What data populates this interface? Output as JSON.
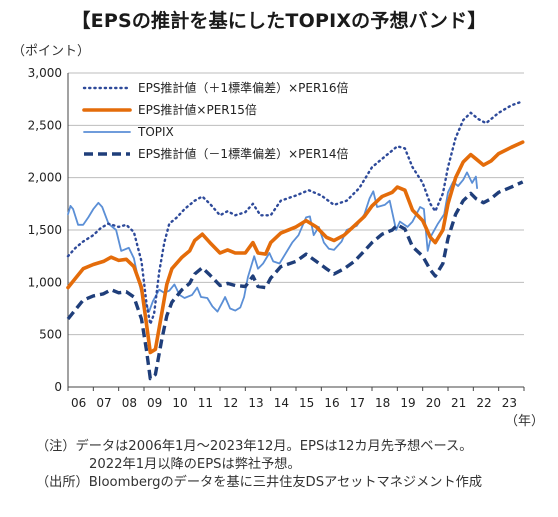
{
  "title": "【EPSの推計を基にしたTOPIXの予想バンド】",
  "y_unit": "（ポイント）",
  "x_unit": "（年）",
  "notes": {
    "line1": "（注）データは2006年1月～2023年12月。EPSは12カ月先予想ベース。",
    "line2": "2022年1月以降のEPSは弊社予想。",
    "line3": "（出所）Bloombergのデータを基に三井住友DSアセットマネジメント作成"
  },
  "chart_data": {
    "type": "line",
    "x_tick_labels": [
      "06",
      "07",
      "08",
      "09",
      "10",
      "11",
      "12",
      "13",
      "14",
      "15",
      "16",
      "17",
      "18",
      "19",
      "20",
      "21",
      "22",
      "23"
    ],
    "x_range": [
      2006.0,
      2024.0
    ],
    "ylim": [
      0,
      3000
    ],
    "y_ticks": [
      0,
      500,
      1000,
      1500,
      2000,
      2500,
      3000
    ],
    "y_tick_labels": [
      "0",
      "500",
      "1,000",
      "1,500",
      "2,000",
      "2,500",
      "3,000"
    ],
    "grid": "horizontal",
    "legend_position": "top-left",
    "series": [
      {
        "name": "EPS推計値（＋1標準偏差）×PER16倍",
        "color": "#2e4a9a",
        "style": "dotted",
        "points": [
          [
            2006.0,
            1250
          ],
          [
            2006.3,
            1330
          ],
          [
            2006.6,
            1390
          ],
          [
            2007.0,
            1450
          ],
          [
            2007.3,
            1520
          ],
          [
            2007.6,
            1560
          ],
          [
            2008.0,
            1530
          ],
          [
            2008.3,
            1550
          ],
          [
            2008.6,
            1480
          ],
          [
            2008.9,
            1200
          ],
          [
            2009.1,
            800
          ],
          [
            2009.25,
            600
          ],
          [
            2009.4,
            700
          ],
          [
            2009.6,
            1100
          ],
          [
            2009.8,
            1380
          ],
          [
            2010.0,
            1560
          ],
          [
            2010.3,
            1620
          ],
          [
            2010.6,
            1700
          ],
          [
            2011.0,
            1780
          ],
          [
            2011.3,
            1820
          ],
          [
            2011.6,
            1750
          ],
          [
            2012.0,
            1640
          ],
          [
            2012.3,
            1680
          ],
          [
            2012.6,
            1640
          ],
          [
            2013.0,
            1670
          ],
          [
            2013.3,
            1750
          ],
          [
            2013.6,
            1640
          ],
          [
            2014.0,
            1640
          ],
          [
            2014.4,
            1780
          ],
          [
            2015.0,
            1830
          ],
          [
            2015.5,
            1880
          ],
          [
            2016.0,
            1830
          ],
          [
            2016.5,
            1740
          ],
          [
            2017.0,
            1780
          ],
          [
            2017.5,
            1900
          ],
          [
            2018.0,
            2100
          ],
          [
            2018.5,
            2200
          ],
          [
            2019.0,
            2300
          ],
          [
            2019.3,
            2280
          ],
          [
            2019.6,
            2100
          ],
          [
            2020.0,
            1950
          ],
          [
            2020.3,
            1750
          ],
          [
            2020.5,
            1680
          ],
          [
            2020.8,
            1850
          ],
          [
            2021.0,
            2100
          ],
          [
            2021.3,
            2380
          ],
          [
            2021.6,
            2550
          ],
          [
            2021.9,
            2620
          ],
          [
            2022.2,
            2560
          ],
          [
            2022.5,
            2520
          ],
          [
            2022.8,
            2580
          ],
          [
            2023.0,
            2620
          ],
          [
            2023.5,
            2690
          ],
          [
            2023.95,
            2730
          ]
        ]
      },
      {
        "name": "EPS推計値×PER15倍",
        "color": "#e46c0a",
        "style": "solid-thick",
        "points": [
          [
            2006.0,
            950
          ],
          [
            2006.3,
            1040
          ],
          [
            2006.6,
            1130
          ],
          [
            2007.0,
            1170
          ],
          [
            2007.4,
            1200
          ],
          [
            2007.7,
            1240
          ],
          [
            2008.0,
            1210
          ],
          [
            2008.3,
            1220
          ],
          [
            2008.6,
            1150
          ],
          [
            2008.9,
            950
          ],
          [
            2009.1,
            600
          ],
          [
            2009.25,
            330
          ],
          [
            2009.45,
            360
          ],
          [
            2009.7,
            700
          ],
          [
            2009.9,
            980
          ],
          [
            2010.1,
            1130
          ],
          [
            2010.5,
            1240
          ],
          [
            2010.8,
            1300
          ],
          [
            2011.0,
            1400
          ],
          [
            2011.3,
            1460
          ],
          [
            2011.6,
            1380
          ],
          [
            2012.0,
            1280
          ],
          [
            2012.3,
            1310
          ],
          [
            2012.6,
            1280
          ],
          [
            2013.0,
            1280
          ],
          [
            2013.3,
            1380
          ],
          [
            2013.5,
            1280
          ],
          [
            2013.8,
            1270
          ],
          [
            2014.0,
            1380
          ],
          [
            2014.4,
            1470
          ],
          [
            2015.0,
            1530
          ],
          [
            2015.4,
            1590
          ],
          [
            2015.8,
            1530
          ],
          [
            2016.2,
            1430
          ],
          [
            2016.5,
            1400
          ],
          [
            2016.9,
            1450
          ],
          [
            2017.3,
            1540
          ],
          [
            2017.7,
            1630
          ],
          [
            2018.0,
            1730
          ],
          [
            2018.4,
            1820
          ],
          [
            2018.8,
            1860
          ],
          [
            2019.0,
            1910
          ],
          [
            2019.3,
            1880
          ],
          [
            2019.6,
            1690
          ],
          [
            2020.0,
            1590
          ],
          [
            2020.3,
            1430
          ],
          [
            2020.5,
            1380
          ],
          [
            2020.8,
            1500
          ],
          [
            2021.0,
            1750
          ],
          [
            2021.3,
            2000
          ],
          [
            2021.6,
            2150
          ],
          [
            2021.9,
            2220
          ],
          [
            2022.1,
            2180
          ],
          [
            2022.4,
            2120
          ],
          [
            2022.7,
            2160
          ],
          [
            2023.0,
            2230
          ],
          [
            2023.5,
            2290
          ],
          [
            2023.95,
            2340
          ]
        ]
      },
      {
        "name": "TOPIX",
        "color": "#5b8fd6",
        "style": "solid-thin",
        "points": [
          [
            2006.0,
            1650
          ],
          [
            2006.1,
            1730
          ],
          [
            2006.2,
            1700
          ],
          [
            2006.4,
            1550
          ],
          [
            2006.6,
            1550
          ],
          [
            2006.8,
            1620
          ],
          [
            2007.0,
            1700
          ],
          [
            2007.2,
            1760
          ],
          [
            2007.35,
            1720
          ],
          [
            2007.6,
            1560
          ],
          [
            2007.9,
            1500
          ],
          [
            2008.1,
            1300
          ],
          [
            2008.4,
            1330
          ],
          [
            2008.6,
            1230
          ],
          [
            2008.8,
            1000
          ],
          [
            2008.95,
            850
          ],
          [
            2009.1,
            780
          ],
          [
            2009.2,
            720
          ],
          [
            2009.35,
            820
          ],
          [
            2009.6,
            930
          ],
          [
            2009.8,
            900
          ],
          [
            2010.0,
            920
          ],
          [
            2010.2,
            980
          ],
          [
            2010.4,
            880
          ],
          [
            2010.6,
            850
          ],
          [
            2010.9,
            880
          ],
          [
            2011.1,
            950
          ],
          [
            2011.25,
            860
          ],
          [
            2011.5,
            850
          ],
          [
            2011.7,
            770
          ],
          [
            2011.9,
            720
          ],
          [
            2012.1,
            810
          ],
          [
            2012.2,
            860
          ],
          [
            2012.4,
            750
          ],
          [
            2012.6,
            730
          ],
          [
            2012.8,
            760
          ],
          [
            2012.95,
            860
          ],
          [
            2013.1,
            1050
          ],
          [
            2013.35,
            1250
          ],
          [
            2013.5,
            1130
          ],
          [
            2013.7,
            1180
          ],
          [
            2013.95,
            1280
          ],
          [
            2014.1,
            1200
          ],
          [
            2014.35,
            1180
          ],
          [
            2014.6,
            1280
          ],
          [
            2014.85,
            1380
          ],
          [
            2015.1,
            1450
          ],
          [
            2015.4,
            1620
          ],
          [
            2015.55,
            1630
          ],
          [
            2015.7,
            1450
          ],
          [
            2015.9,
            1530
          ],
          [
            2016.1,
            1380
          ],
          [
            2016.3,
            1320
          ],
          [
            2016.5,
            1310
          ],
          [
            2016.8,
            1390
          ],
          [
            2017.0,
            1500
          ],
          [
            2017.4,
            1540
          ],
          [
            2017.7,
            1650
          ],
          [
            2017.9,
            1800
          ],
          [
            2018.05,
            1870
          ],
          [
            2018.2,
            1720
          ],
          [
            2018.5,
            1740
          ],
          [
            2018.7,
            1780
          ],
          [
            2018.95,
            1500
          ],
          [
            2019.1,
            1580
          ],
          [
            2019.4,
            1530
          ],
          [
            2019.6,
            1580
          ],
          [
            2019.9,
            1720
          ],
          [
            2020.05,
            1700
          ],
          [
            2020.2,
            1300
          ],
          [
            2020.35,
            1450
          ],
          [
            2020.6,
            1560
          ],
          [
            2020.85,
            1650
          ],
          [
            2021.0,
            1860
          ],
          [
            2021.2,
            1960
          ],
          [
            2021.4,
            1920
          ],
          [
            2021.6,
            1980
          ],
          [
            2021.75,
            2050
          ],
          [
            2021.95,
            1950
          ],
          [
            2022.1,
            2010
          ],
          [
            2022.15,
            1900
          ]
        ]
      },
      {
        "name": "EPS推計値（－1標準偏差）×PER14倍",
        "color": "#1f3e7a",
        "style": "dashed-thick",
        "points": [
          [
            2006.0,
            650
          ],
          [
            2006.3,
            740
          ],
          [
            2006.6,
            830
          ],
          [
            2007.0,
            870
          ],
          [
            2007.4,
            890
          ],
          [
            2007.7,
            930
          ],
          [
            2008.0,
            900
          ],
          [
            2008.3,
            910
          ],
          [
            2008.6,
            860
          ],
          [
            2008.9,
            650
          ],
          [
            2009.1,
            350
          ],
          [
            2009.25,
            80
          ],
          [
            2009.45,
            120
          ],
          [
            2009.7,
            450
          ],
          [
            2009.9,
            680
          ],
          [
            2010.1,
            810
          ],
          [
            2010.5,
            930
          ],
          [
            2010.8,
            990
          ],
          [
            2011.0,
            1080
          ],
          [
            2011.3,
            1140
          ],
          [
            2011.6,
            1070
          ],
          [
            2012.0,
            970
          ],
          [
            2012.3,
            990
          ],
          [
            2012.6,
            970
          ],
          [
            2013.0,
            960
          ],
          [
            2013.3,
            1060
          ],
          [
            2013.5,
            960
          ],
          [
            2013.8,
            950
          ],
          [
            2014.0,
            1040
          ],
          [
            2014.4,
            1150
          ],
          [
            2015.0,
            1200
          ],
          [
            2015.4,
            1270
          ],
          [
            2015.8,
            1200
          ],
          [
            2016.2,
            1130
          ],
          [
            2016.5,
            1080
          ],
          [
            2016.9,
            1130
          ],
          [
            2017.3,
            1200
          ],
          [
            2017.7,
            1300
          ],
          [
            2018.0,
            1380
          ],
          [
            2018.4,
            1460
          ],
          [
            2018.8,
            1500
          ],
          [
            2019.0,
            1550
          ],
          [
            2019.3,
            1510
          ],
          [
            2019.6,
            1340
          ],
          [
            2020.0,
            1250
          ],
          [
            2020.3,
            1120
          ],
          [
            2020.5,
            1060
          ],
          [
            2020.8,
            1180
          ],
          [
            2021.0,
            1420
          ],
          [
            2021.3,
            1650
          ],
          [
            2021.6,
            1780
          ],
          [
            2021.9,
            1850
          ],
          [
            2022.1,
            1800
          ],
          [
            2022.4,
            1760
          ],
          [
            2022.7,
            1800
          ],
          [
            2023.0,
            1860
          ],
          [
            2023.5,
            1910
          ],
          [
            2023.95,
            1960
          ]
        ]
      }
    ]
  }
}
